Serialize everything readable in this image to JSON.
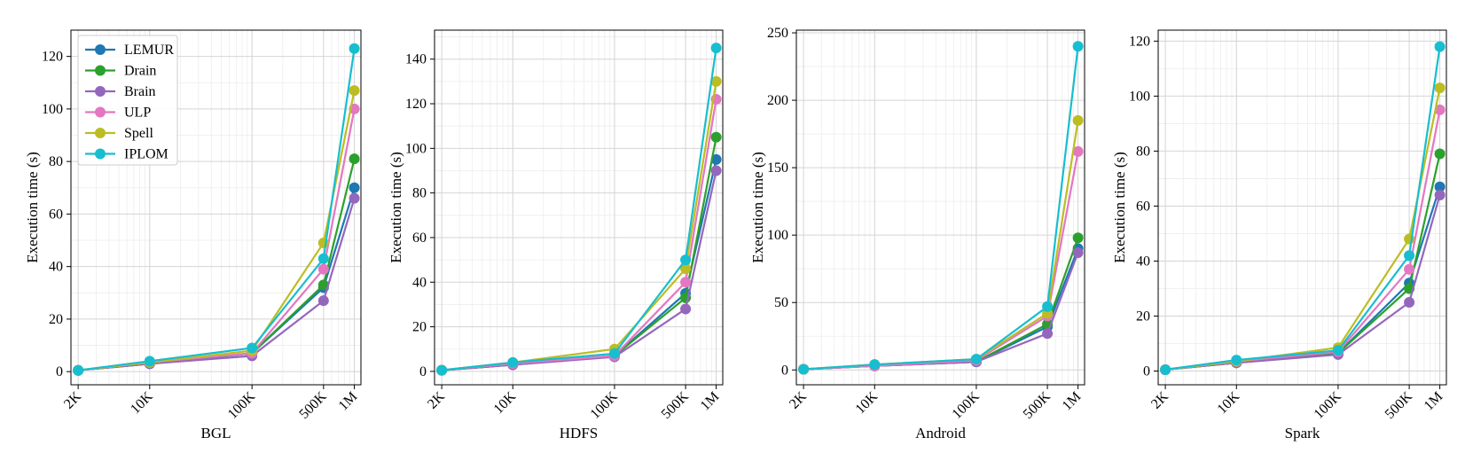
{
  "chart_data": [
    {
      "type": "line",
      "xlabel": "BGL",
      "ylabel": "Execution time (s)",
      "x_scale": "log",
      "x": [
        2000,
        10000,
        100000,
        500000,
        1000000
      ],
      "x_tick_labels": [
        "2K",
        "10K",
        "100K",
        "500K",
        "1M"
      ],
      "ylim": [
        -5,
        130
      ],
      "yticks": [
        0,
        20,
        40,
        60,
        80,
        100,
        120
      ],
      "grid": true,
      "legend": "top-left",
      "series": [
        {
          "name": "LEMUR",
          "values": [
            0.5,
            3,
            7,
            32,
            70
          ]
        },
        {
          "name": "Drain",
          "values": [
            0.5,
            3,
            7,
            33,
            81
          ]
        },
        {
          "name": "Brain",
          "values": [
            0.5,
            3,
            6,
            27,
            66
          ]
        },
        {
          "name": "ULP",
          "values": [
            0.5,
            3.5,
            7,
            39,
            100
          ]
        },
        {
          "name": "Spell",
          "values": [
            0.5,
            3.5,
            8,
            49,
            107
          ]
        },
        {
          "name": "IPLOM",
          "values": [
            0.5,
            4,
            9,
            43,
            123
          ]
        }
      ]
    },
    {
      "type": "line",
      "xlabel": "HDFS",
      "ylabel": "Execution time (s)",
      "x_scale": "log",
      "x": [
        2000,
        10000,
        100000,
        500000,
        1000000
      ],
      "x_tick_labels": [
        "2K",
        "10K",
        "100K",
        "500K",
        "1M"
      ],
      "ylim": [
        -6,
        153
      ],
      "yticks": [
        0,
        20,
        40,
        60,
        80,
        100,
        120,
        140
      ],
      "grid": true,
      "series": [
        {
          "name": "LEMUR",
          "values": [
            0.5,
            3,
            7,
            35,
            95
          ]
        },
        {
          "name": "Drain",
          "values": [
            0.5,
            3,
            7,
            33,
            105
          ]
        },
        {
          "name": "Brain",
          "values": [
            0.5,
            3,
            6.5,
            28,
            90
          ]
        },
        {
          "name": "ULP",
          "values": [
            0.5,
            3.5,
            7,
            40,
            122
          ]
        },
        {
          "name": "Spell",
          "values": [
            0.5,
            4,
            10,
            46,
            130
          ]
        },
        {
          "name": "IPLOM",
          "values": [
            0.5,
            4,
            8,
            50,
            145
          ]
        }
      ]
    },
    {
      "type": "line",
      "xlabel": "Android",
      "ylabel": "Execution time (s)",
      "x_scale": "log",
      "x": [
        2000,
        10000,
        100000,
        500000,
        1000000
      ],
      "x_tick_labels": [
        "2K",
        "10K",
        "100K",
        "500K",
        "1M"
      ],
      "ylim": [
        -11,
        252
      ],
      "yticks": [
        0,
        50,
        100,
        150,
        200,
        250
      ],
      "grid": true,
      "series": [
        {
          "name": "LEMUR",
          "values": [
            0.5,
            3,
            6,
            32,
            90
          ]
        },
        {
          "name": "Drain",
          "values": [
            0.5,
            3,
            6,
            34,
            98
          ]
        },
        {
          "name": "Brain",
          "values": [
            0.5,
            3,
            6,
            27,
            87
          ]
        },
        {
          "name": "ULP",
          "values": [
            0.5,
            3,
            7,
            40,
            162
          ]
        },
        {
          "name": "Spell",
          "values": [
            0.5,
            4,
            8,
            42,
            185
          ]
        },
        {
          "name": "IPLOM",
          "values": [
            0.5,
            4,
            8,
            47,
            240
          ]
        }
      ]
    },
    {
      "type": "line",
      "xlabel": "Spark",
      "ylabel": "Execution time (s)",
      "x_scale": "log",
      "x": [
        2000,
        10000,
        100000,
        500000,
        1000000
      ],
      "x_tick_labels": [
        "2K",
        "10K",
        "100K",
        "500K",
        "1M"
      ],
      "ylim": [
        -5,
        124
      ],
      "yticks": [
        0,
        20,
        40,
        60,
        80,
        100,
        120
      ],
      "grid": true,
      "series": [
        {
          "name": "LEMUR",
          "values": [
            0.5,
            3,
            6.5,
            32,
            67
          ]
        },
        {
          "name": "Drain",
          "values": [
            0.5,
            3,
            6.5,
            30,
            79
          ]
        },
        {
          "name": "Brain",
          "values": [
            0.5,
            3,
            6,
            25,
            64
          ]
        },
        {
          "name": "ULP",
          "values": [
            0.5,
            3.5,
            7,
            37,
            95
          ]
        },
        {
          "name": "Spell",
          "values": [
            0.5,
            3.5,
            8.5,
            48,
            103
          ]
        },
        {
          "name": "IPLOM",
          "values": [
            0.5,
            4,
            7.5,
            42,
            118
          ]
        }
      ]
    }
  ],
  "colors": {
    "LEMUR": "#1f77b4",
    "Drain": "#2ca02c",
    "Brain": "#9467bd",
    "ULP": "#e377c2",
    "Spell": "#bcbd22",
    "IPLOM": "#17becf"
  }
}
